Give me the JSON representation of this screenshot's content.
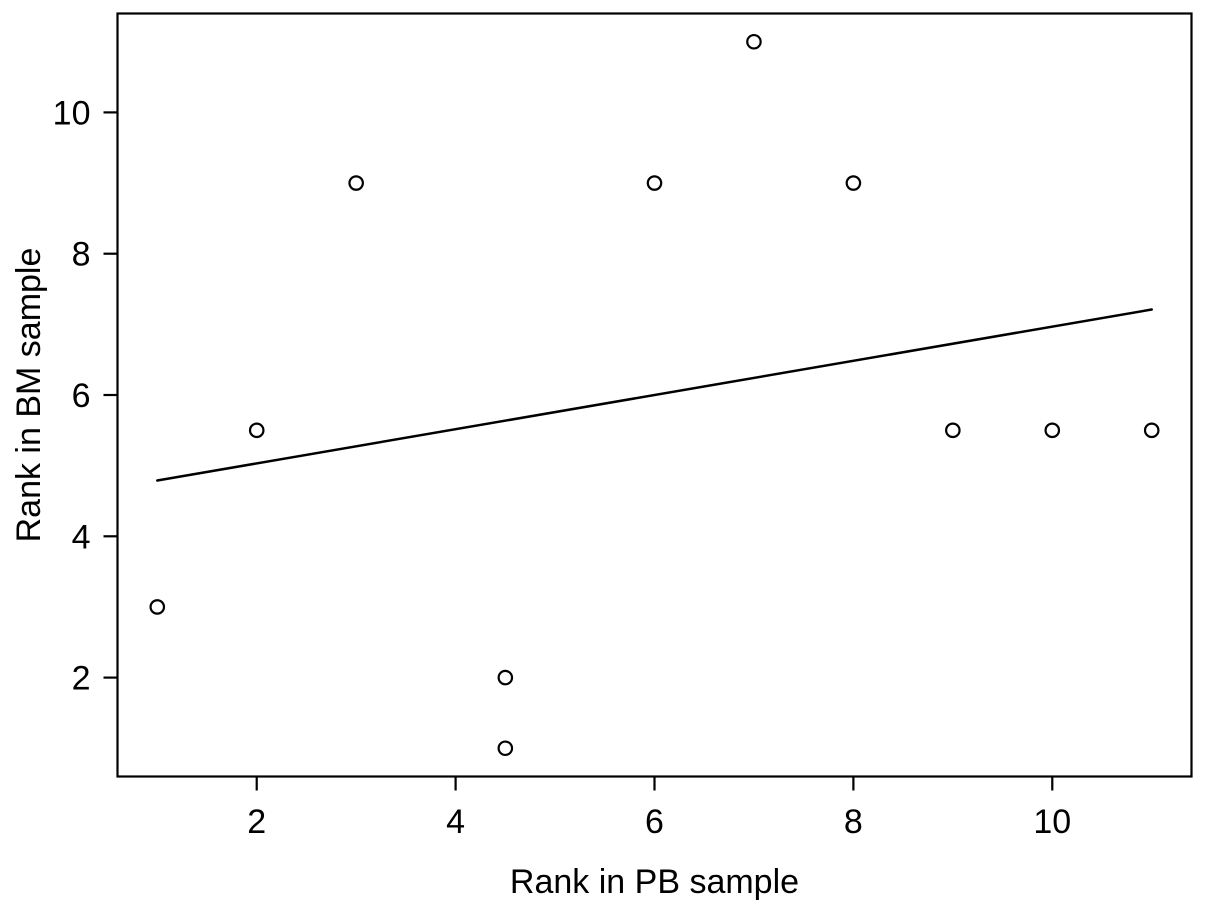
{
  "figure": {
    "background": "#ffffff",
    "foreground": "#000000"
  },
  "chart_data": {
    "type": "scatter",
    "title": "",
    "xlabel": "Rank in PB sample",
    "ylabel": "Rank in BM sample",
    "xlim": [
      0.6,
      11.4
    ],
    "ylim": [
      0.6,
      11.4
    ],
    "x_ticks": [
      2,
      4,
      6,
      8,
      10
    ],
    "y_ticks": [
      2,
      4,
      6,
      8,
      10
    ],
    "grid": false,
    "legend_position": "none",
    "marker": "open-circle",
    "points": [
      {
        "x": 1,
        "y": 3
      },
      {
        "x": 2,
        "y": 5.5
      },
      {
        "x": 3,
        "y": 9
      },
      {
        "x": 4.5,
        "y": 2
      },
      {
        "x": 4.5,
        "y": 1
      },
      {
        "x": 6,
        "y": 9
      },
      {
        "x": 7,
        "y": 11
      },
      {
        "x": 8,
        "y": 9
      },
      {
        "x": 9,
        "y": 5.5
      },
      {
        "x": 10,
        "y": 5.5
      },
      {
        "x": 11,
        "y": 5.5
      }
    ],
    "fit_line": {
      "x1": 1,
      "y1": 4.79,
      "x2": 11,
      "y2": 7.21
    }
  }
}
